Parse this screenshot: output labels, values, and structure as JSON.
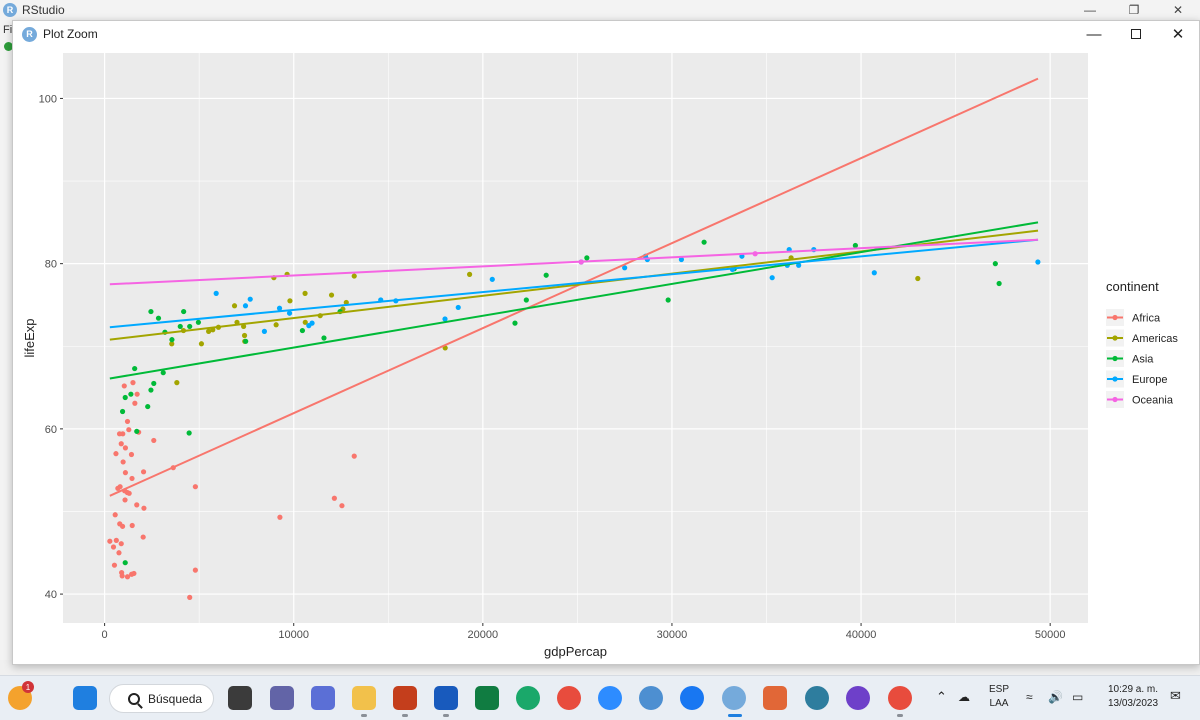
{
  "rstudio": {
    "title": "RStudio",
    "menu_fragment": "Fi"
  },
  "window": {
    "title": "Plot Zoom"
  },
  "chart_data": {
    "type": "scatter",
    "xlabel": "gdpPercap",
    "ylabel": "lifeExp",
    "xlim": [
      -2200,
      52000
    ],
    "ylim": [
      36.5,
      105.5
    ],
    "x_ticks": [
      0,
      10000,
      20000,
      30000,
      40000,
      50000
    ],
    "y_ticks": [
      40,
      60,
      80,
      100
    ],
    "legend_title": "continent",
    "legend_position": "right",
    "grid": true,
    "series": [
      {
        "name": "Africa",
        "color": "#F8766D",
        "trend": [
          [
            277,
            51.9
          ],
          [
            49357,
            102.4
          ]
        ],
        "points": [
          [
            277,
            46.4
          ],
          [
            470,
            45.7
          ],
          [
            520,
            43.5
          ],
          [
            560,
            49.6
          ],
          [
            600,
            57.0
          ],
          [
            620,
            46.5
          ],
          [
            700,
            52.8
          ],
          [
            760,
            45.0
          ],
          [
            790,
            59.4
          ],
          [
            800,
            48.5
          ],
          [
            820,
            53.0
          ],
          [
            880,
            58.2
          ],
          [
            880,
            46.1
          ],
          [
            900,
            42.6
          ],
          [
            930,
            42.2
          ],
          [
            950,
            48.2
          ],
          [
            960,
            59.4
          ],
          [
            980,
            56.0
          ],
          [
            1040,
            65.2
          ],
          [
            1060,
            52.5
          ],
          [
            1080,
            51.4
          ],
          [
            1100,
            54.7
          ],
          [
            1100,
            57.7
          ],
          [
            1200,
            52.3
          ],
          [
            1210,
            60.9
          ],
          [
            1210,
            42.1
          ],
          [
            1280,
            59.9
          ],
          [
            1300,
            52.2
          ],
          [
            1420,
            56.9
          ],
          [
            1430,
            42.4
          ],
          [
            1450,
            54.0
          ],
          [
            1460,
            48.3
          ],
          [
            1500,
            65.6
          ],
          [
            1550,
            42.5
          ],
          [
            1600,
            63.1
          ],
          [
            1700,
            50.8
          ],
          [
            1720,
            64.2
          ],
          [
            1800,
            59.6
          ],
          [
            2040,
            46.9
          ],
          [
            2060,
            54.8
          ],
          [
            2080,
            50.4
          ],
          [
            2600,
            58.6
          ],
          [
            3630,
            55.3
          ],
          [
            4500,
            39.6
          ],
          [
            4800,
            42.9
          ],
          [
            4800,
            53.0
          ],
          [
            9270,
            49.3
          ],
          [
            12150,
            51.6
          ],
          [
            12550,
            50.7
          ],
          [
            13200,
            56.7
          ]
        ]
      },
      {
        "name": "Americas",
        "color": "#A3A500",
        "trend": [
          [
            277,
            70.8
          ],
          [
            49357,
            84.0
          ]
        ],
        "points": [
          [
            3550,
            70.3
          ],
          [
            3820,
            65.6
          ],
          [
            4170,
            71.9
          ],
          [
            5120,
            70.3
          ],
          [
            5500,
            71.8
          ],
          [
            5720,
            72.0
          ],
          [
            6020,
            72.3
          ],
          [
            6870,
            74.9
          ],
          [
            7000,
            72.9
          ],
          [
            7350,
            72.4
          ],
          [
            7400,
            71.3
          ],
          [
            7410,
            70.6
          ],
          [
            8950,
            78.3
          ],
          [
            9070,
            72.6
          ],
          [
            9650,
            78.7
          ],
          [
            9800,
            75.5
          ],
          [
            10600,
            76.4
          ],
          [
            10610,
            72.9
          ],
          [
            11400,
            73.7
          ],
          [
            12000,
            76.2
          ],
          [
            12600,
            74.5
          ],
          [
            12780,
            75.3
          ],
          [
            13200,
            78.5
          ],
          [
            18010,
            69.8
          ],
          [
            19300,
            78.7
          ],
          [
            36300,
            80.7
          ],
          [
            43000,
            78.2
          ]
        ]
      },
      {
        "name": "Asia",
        "color": "#00BA38",
        "trend": [
          [
            277,
            66.1
          ],
          [
            49357,
            85.0
          ]
        ],
        "points": [
          [
            950,
            62.1
          ],
          [
            1090,
            43.8
          ],
          [
            1090,
            63.8
          ],
          [
            1390,
            64.2
          ],
          [
            1590,
            67.3
          ],
          [
            1700,
            59.7
          ],
          [
            2280,
            62.7
          ],
          [
            2450,
            74.2
          ],
          [
            2450,
            64.7
          ],
          [
            2600,
            65.5
          ],
          [
            2850,
            73.4
          ],
          [
            3100,
            66.8
          ],
          [
            3190,
            71.7
          ],
          [
            3560,
            70.8
          ],
          [
            4000,
            72.4
          ],
          [
            4180,
            74.2
          ],
          [
            4470,
            59.5
          ],
          [
            4500,
            72.4
          ],
          [
            4960,
            72.9
          ],
          [
            7460,
            70.6
          ],
          [
            10460,
            71.9
          ],
          [
            11600,
            71.0
          ],
          [
            12450,
            74.2
          ],
          [
            21700,
            72.8
          ],
          [
            22300,
            75.6
          ],
          [
            23350,
            78.6
          ],
          [
            25500,
            80.7
          ],
          [
            29800,
            75.6
          ],
          [
            31700,
            82.6
          ],
          [
            33300,
            79.4
          ],
          [
            39700,
            82.2
          ],
          [
            47300,
            77.6
          ],
          [
            47100,
            80.0
          ]
        ]
      },
      {
        "name": "Europe",
        "color": "#00A9FF",
        "trend": [
          [
            277,
            72.3
          ],
          [
            49357,
            82.9
          ]
        ],
        "points": [
          [
            5900,
            76.4
          ],
          [
            7450,
            74.9
          ],
          [
            7700,
            75.7
          ],
          [
            8450,
            71.8
          ],
          [
            9250,
            74.6
          ],
          [
            9780,
            74.0
          ],
          [
            10800,
            72.5
          ],
          [
            10970,
            72.8
          ],
          [
            14600,
            75.6
          ],
          [
            15400,
            75.5
          ],
          [
            18000,
            73.3
          ],
          [
            18700,
            74.7
          ],
          [
            20500,
            78.1
          ],
          [
            25200,
            80.2
          ],
          [
            27500,
            79.5
          ],
          [
            28600,
            80.9
          ],
          [
            28700,
            80.5
          ],
          [
            30500,
            80.5
          ],
          [
            33200,
            79.3
          ],
          [
            33700,
            80.9
          ],
          [
            35300,
            78.3
          ],
          [
            36100,
            79.8
          ],
          [
            36200,
            81.7
          ],
          [
            36700,
            79.8
          ],
          [
            37500,
            81.7
          ],
          [
            40700,
            78.9
          ],
          [
            49350,
            80.2
          ]
        ]
      },
      {
        "name": "Oceania",
        "color": "#F564E3",
        "trend": [
          [
            277,
            77.5
          ],
          [
            49357,
            82.9
          ]
        ],
        "points": [
          [
            25200,
            80.2
          ],
          [
            34400,
            81.2
          ]
        ]
      }
    ]
  },
  "taskbar": {
    "search_label": "Búsqueda",
    "notification_count": "1",
    "lang_line1": "ESP",
    "lang_line2": "LAA",
    "time": "10:29 a. m.",
    "date": "13/03/2023"
  }
}
